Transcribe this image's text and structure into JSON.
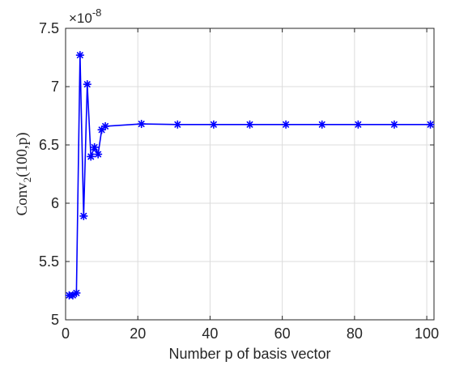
{
  "chart_data": {
    "type": "line",
    "xlabel": "Number p of basis vector",
    "ylabel": {
      "main": "Conv",
      "subscript": "2",
      "args": "(100,p)"
    },
    "y_scale_multiplier": "×10",
    "y_scale_exponent": "-8",
    "xlim": [
      0,
      102
    ],
    "ylim": [
      5.0,
      7.5
    ],
    "x_ticks": [
      0,
      20,
      40,
      60,
      80,
      100
    ],
    "y_ticks": [
      5.0,
      5.5,
      6.0,
      6.5,
      7.0,
      7.5
    ],
    "x_tick_labels": [
      "0",
      "20",
      "40",
      "60",
      "80",
      "100"
    ],
    "y_tick_labels": [
      "5",
      "5.5",
      "6",
      "6.5",
      "7",
      "7.5"
    ],
    "grid": true,
    "series": [
      {
        "color": "#0000ff",
        "marker": "asterisk",
        "x": [
          1,
          2,
          3,
          4,
          5,
          6,
          7,
          8,
          9,
          10,
          11,
          21,
          31,
          41,
          51,
          61,
          71,
          81,
          91,
          101
        ],
        "y": [
          5.21,
          5.21,
          5.23,
          7.27,
          5.89,
          7.02,
          6.4,
          6.48,
          6.42,
          6.63,
          6.66,
          6.68,
          6.675,
          6.675,
          6.675,
          6.675,
          6.675,
          6.675,
          6.675,
          6.675
        ]
      }
    ]
  }
}
